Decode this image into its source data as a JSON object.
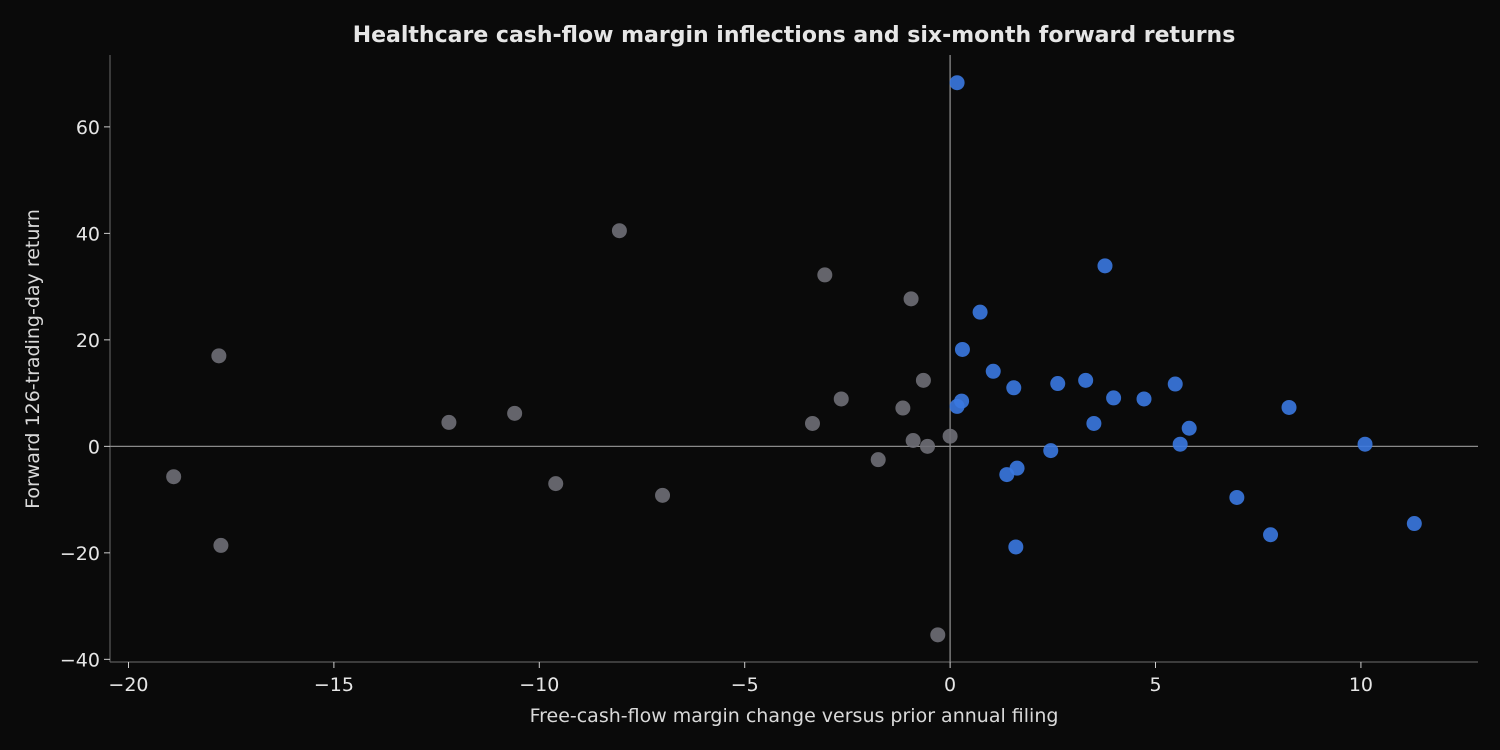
{
  "colors": {
    "background": "#0a0a0a",
    "positive_points": "#3a78e0",
    "negative_points": "#6e6e75",
    "axes": "#5a5a5a",
    "zero_lines": "#8a8a8a"
  },
  "chart_data": {
    "type": "scatter",
    "title": "Healthcare cash-flow margin inflections and six-month forward returns",
    "xlabel": "Free-cash-flow margin change versus prior annual filing",
    "ylabel": "Forward 126-trading-day return",
    "xlim": [
      -20.45,
      12.85
    ],
    "ylim": [
      -40.5,
      73.5
    ],
    "xticks": [
      -20,
      -15,
      -10,
      -5,
      0,
      5,
      10
    ],
    "yticks": [
      -40,
      -20,
      0,
      20,
      40,
      60
    ],
    "xtick_labels": [
      "−20",
      "−15",
      "−10",
      "−5",
      "0",
      "5",
      "10"
    ],
    "ytick_labels": [
      "−40",
      "−20",
      "0",
      "20",
      "40",
      "60"
    ],
    "grid": false,
    "reference_lines": {
      "x": 0,
      "y": 0
    },
    "series": [
      {
        "color": "#6e6e75",
        "points": [
          [
            -18.9,
            -5.7
          ],
          [
            -17.8,
            17.0
          ],
          [
            -17.75,
            -18.6
          ],
          [
            -12.2,
            4.5
          ],
          [
            -10.6,
            6.2
          ],
          [
            -9.6,
            -7.0
          ],
          [
            -8.05,
            40.5
          ],
          [
            -7.0,
            -9.2
          ],
          [
            -3.35,
            4.3
          ],
          [
            -3.05,
            32.2
          ],
          [
            -2.65,
            8.9
          ],
          [
            -1.75,
            -2.5
          ],
          [
            -1.15,
            7.2
          ],
          [
            -0.95,
            27.7
          ],
          [
            -0.9,
            1.1
          ],
          [
            -0.65,
            12.4
          ],
          [
            -0.55,
            0.0
          ],
          [
            -0.3,
            -35.4
          ],
          [
            0.0,
            1.9
          ]
        ]
      },
      {
        "color": "#3a78e0",
        "points": [
          [
            0.17,
            68.3
          ],
          [
            0.17,
            7.5
          ],
          [
            0.28,
            8.5
          ],
          [
            0.3,
            18.2
          ],
          [
            0.73,
            25.2
          ],
          [
            1.05,
            14.1
          ],
          [
            1.38,
            -5.3
          ],
          [
            1.55,
            11.0
          ],
          [
            1.6,
            -18.9
          ],
          [
            1.63,
            -4.1
          ],
          [
            2.45,
            -0.8
          ],
          [
            2.62,
            11.8
          ],
          [
            3.3,
            12.4
          ],
          [
            3.5,
            4.3
          ],
          [
            3.77,
            33.9
          ],
          [
            3.98,
            9.1
          ],
          [
            4.72,
            8.9
          ],
          [
            5.48,
            11.7
          ],
          [
            5.6,
            0.4
          ],
          [
            5.82,
            3.4
          ],
          [
            6.98,
            -9.6
          ],
          [
            7.8,
            -16.6
          ],
          [
            8.25,
            7.3
          ],
          [
            10.1,
            0.4
          ],
          [
            11.3,
            -14.5
          ]
        ]
      }
    ]
  }
}
